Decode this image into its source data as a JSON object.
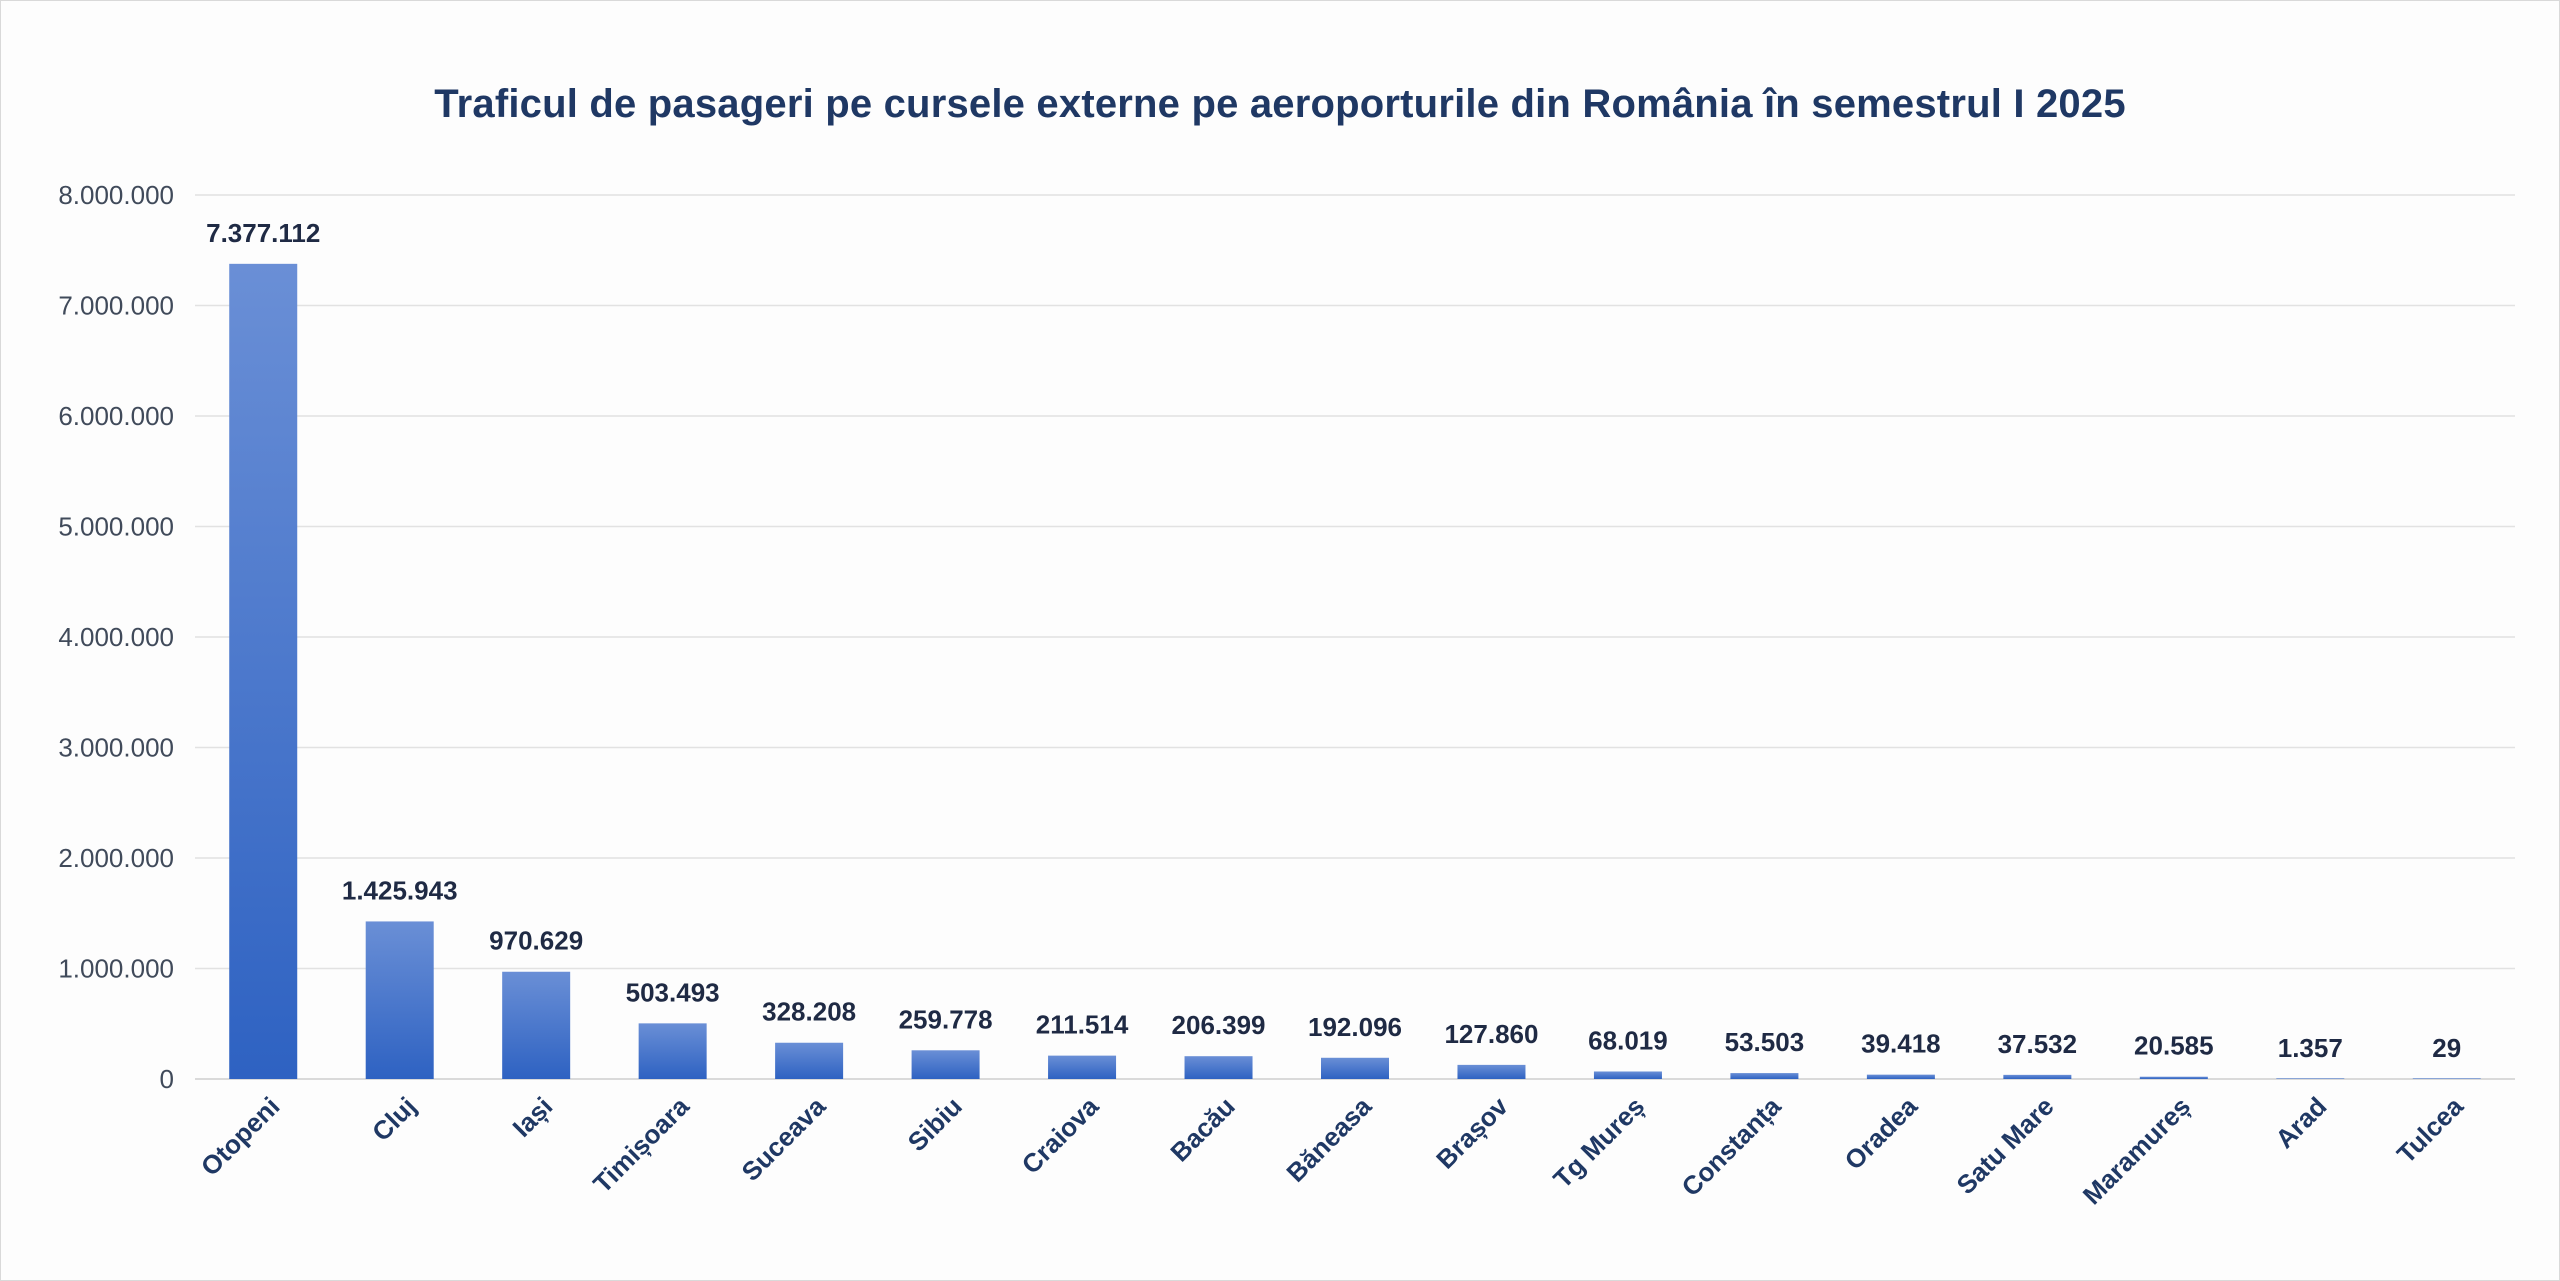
{
  "chart_data": {
    "type": "bar",
    "title": "Traficul de pasageri pe cursele externe pe aeroporturile din România în semestrul I 2025",
    "categories": [
      "Otopeni",
      "Cluj",
      "Iași",
      "Timișoara",
      "Suceava",
      "Sibiu",
      "Craiova",
      "Bacău",
      "Băneasa",
      "Brașov",
      "Tg Mureș",
      "Constanța",
      "Oradea",
      "Satu Mare",
      "Maramureș",
      "Arad",
      "Tulcea"
    ],
    "values": [
      7377112,
      1425943,
      970629,
      503493,
      328208,
      259778,
      211514,
      206399,
      192096,
      127860,
      68019,
      53503,
      39418,
      37532,
      20585,
      1357,
      29
    ],
    "data_labels": [
      "7.377.112",
      "1.425.943",
      "970.629",
      "503.493",
      "328.208",
      "259.778",
      "211.514",
      "206.399",
      "192.096",
      "127.860",
      "68.019",
      "53.503",
      "39.418",
      "37.532",
      "20.585",
      "1.357",
      "29"
    ],
    "y_ticks": [
      0,
      1000000,
      2000000,
      3000000,
      4000000,
      5000000,
      6000000,
      7000000,
      8000000
    ],
    "y_tick_labels": [
      "0",
      "1.000.000",
      "2.000.000",
      "3.000.000",
      "4.000.000",
      "5.000.000",
      "6.000.000",
      "7.000.000",
      "8.000.000"
    ],
    "ylim": [
      0,
      8000000
    ],
    "xlabel": "",
    "ylabel": "",
    "grid": true,
    "legend": "none",
    "colors": {
      "bar_top": "#6a8fd6",
      "bar_bottom": "#2e62c2",
      "grid": "#e2e2e2",
      "title": "#1f3864"
    }
  }
}
